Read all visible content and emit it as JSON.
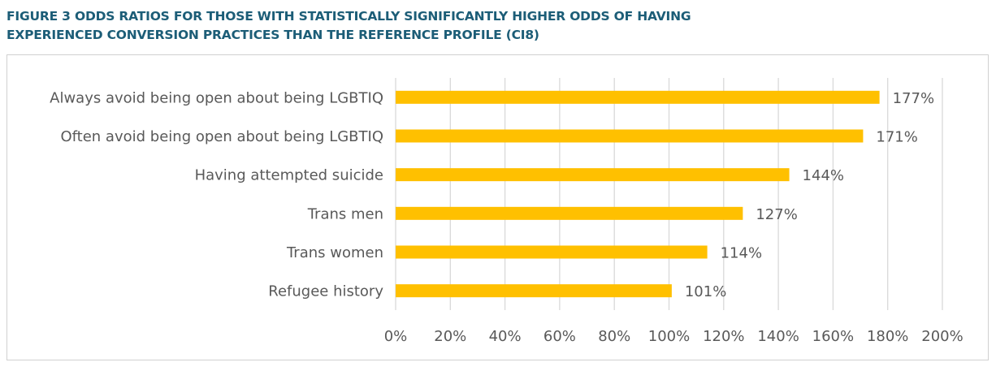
{
  "title_lines": [
    "FIGURE 3 ODDS RATIOS FOR THOSE WITH STATISTICALLY SIGNIFICANTLY HIGHER ODDS OF HAVING",
    "EXPERIENCED CONVERSION PRACTICES THAN THE REFERENCE PROFILE (CI8)"
  ],
  "chart_data": {
    "type": "bar",
    "orientation": "horizontal",
    "title": "FIGURE 3 ODDS RATIOS FOR THOSE WITH STATISTICALLY SIGNIFICANTLY HIGHER ODDS OF HAVING EXPERIENCED CONVERSION PRACTICES THAN THE REFERENCE PROFILE (CI8)",
    "categories": [
      "Always avoid being open about being LGBTIQ",
      "Often avoid being open about being LGBTIQ",
      "Having attempted suicide",
      "Trans men",
      "Trans women",
      "Refugee history"
    ],
    "values": [
      177,
      171,
      144,
      127,
      114,
      101
    ],
    "data_labels": [
      "177%",
      "171%",
      "144%",
      "127%",
      "114%",
      "101%"
    ],
    "xlabel": "",
    "ylabel": "",
    "xlim": [
      0,
      200
    ],
    "x_ticks": [
      0,
      20,
      40,
      60,
      80,
      100,
      120,
      140,
      160,
      180,
      200
    ],
    "x_tick_labels": [
      "0%",
      "20%",
      "40%",
      "60%",
      "80%",
      "100%",
      "120%",
      "140%",
      "160%",
      "180%",
      "200%"
    ],
    "grid": true,
    "legend": "none",
    "bar_color": "#ffc000",
    "grid_color": "#d9d9d9"
  }
}
